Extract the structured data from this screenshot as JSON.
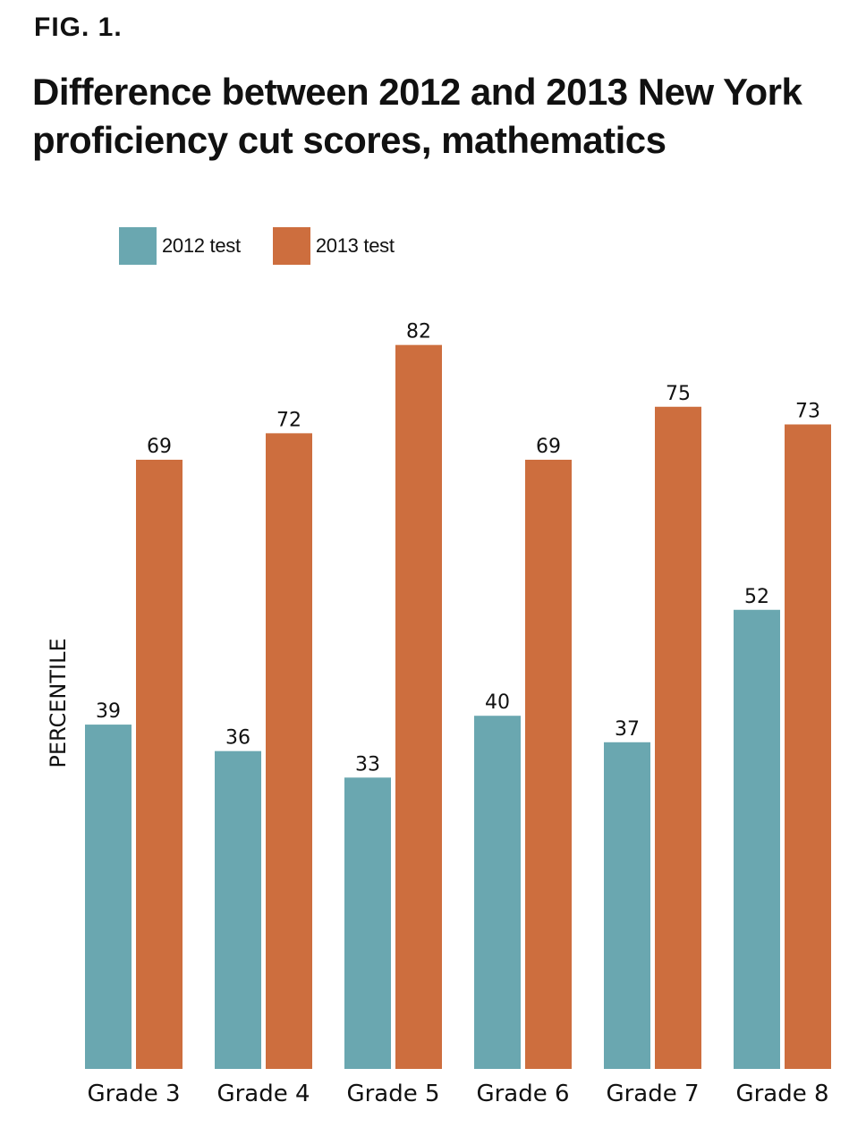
{
  "figure": {
    "label": "FIG. 1."
  },
  "colors": {
    "series_2012": "#6aa7b0",
    "series_2013": "#cd6e3e"
  },
  "chart_data": {
    "type": "bar",
    "title": "Difference between 2012 and 2013 New York proficiency cut scores, mathematics",
    "xlabel": "",
    "ylabel": "PERCENTILE",
    "ylim": [
      0,
      100
    ],
    "grid": false,
    "legend_position": "top-left",
    "categories": [
      "Grade 3",
      "Grade 4",
      "Grade 5",
      "Grade 6",
      "Grade 7",
      "Grade 8"
    ],
    "series": [
      {
        "name": "2012 test",
        "values": [
          39,
          36,
          33,
          40,
          37,
          52
        ]
      },
      {
        "name": "2013 test",
        "values": [
          69,
          72,
          82,
          69,
          75,
          73
        ]
      }
    ]
  }
}
